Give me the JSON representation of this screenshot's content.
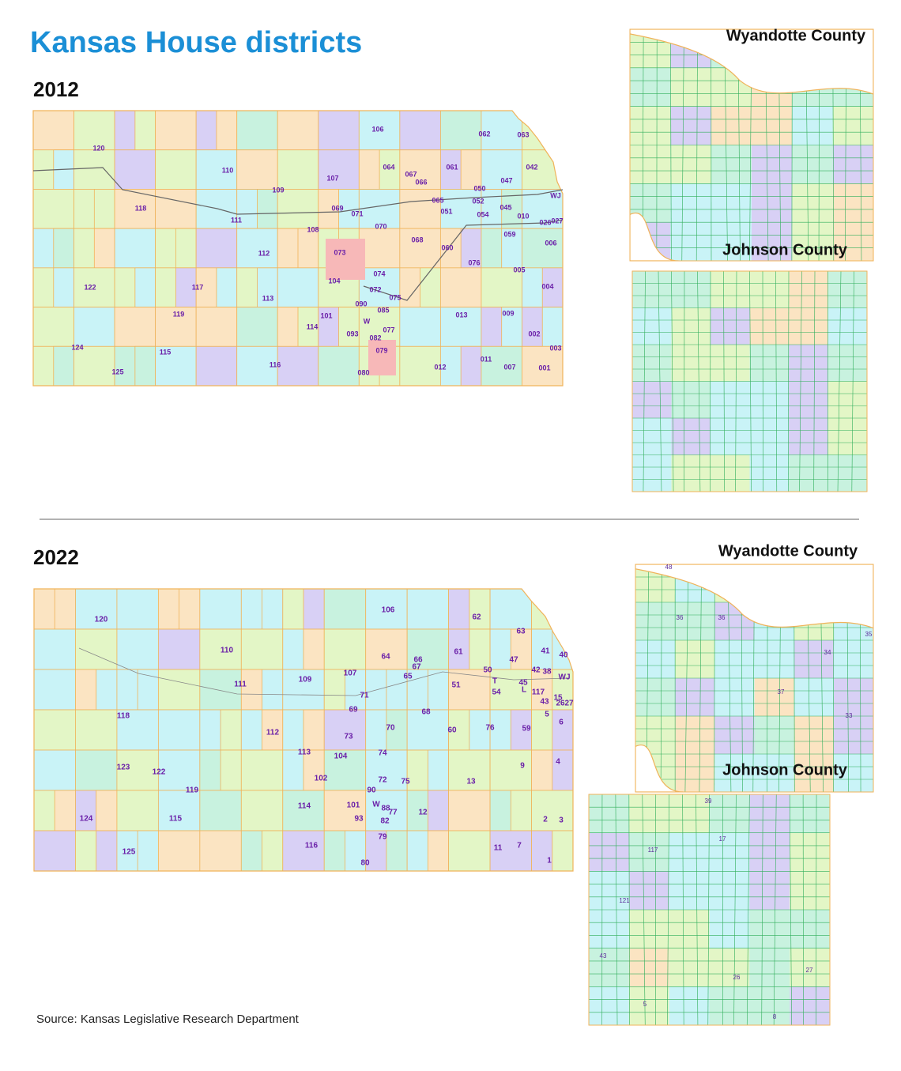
{
  "title": "Kansas House districts",
  "sections": [
    {
      "year": "2012",
      "labels": [
        "120",
        "110",
        "109",
        "118",
        "111",
        "106",
        "062",
        "063",
        "064",
        "067",
        "066",
        "061",
        "042",
        "047",
        "107",
        "050",
        "052",
        "065",
        "045",
        "051",
        "054",
        "010",
        "069",
        "071",
        "027",
        "026",
        "108",
        "070",
        "059",
        "112",
        "068",
        "006",
        "060",
        "073",
        "076",
        "005",
        "104",
        "074",
        "122",
        "117",
        "072",
        "004",
        "113",
        "075",
        "090",
        "119",
        "085",
        "013",
        "009",
        "101",
        "114",
        "077",
        "093",
        "002",
        "082",
        "124",
        "115",
        "079",
        "003",
        "116",
        "012",
        "011",
        "007",
        "001",
        "125",
        "080",
        "W",
        "WJ"
      ],
      "insets": [
        {
          "title": "Wyandotte County",
          "labels": []
        },
        {
          "title": "Johnson County",
          "labels": []
        }
      ]
    },
    {
      "year": "2022",
      "labels": [
        "120",
        "106",
        "62",
        "63",
        "110",
        "64",
        "66",
        "67",
        "61",
        "47",
        "41",
        "40",
        "107",
        "109",
        "65",
        "50",
        "42",
        "38",
        "111",
        "71",
        "51",
        "T",
        "45",
        "L",
        "117",
        "WJ",
        "54",
        "15",
        "26",
        "27",
        "43",
        "69",
        "118",
        "68",
        "5",
        "112",
        "70",
        "60",
        "76",
        "59",
        "6",
        "73",
        "113",
        "74",
        "104",
        "4",
        "123",
        "122",
        "102",
        "72",
        "75",
        "13",
        "9",
        "119",
        "90",
        "W",
        "88",
        "101",
        "114",
        "12",
        "77",
        "82",
        "115",
        "124",
        "93",
        "2",
        "3",
        "79",
        "116",
        "11",
        "7",
        "125",
        "80",
        "1"
      ],
      "insets": [
        {
          "title": "Wyandotte County",
          "labels": [
            "48",
            "36",
            "36",
            "35",
            "34",
            "37",
            "33"
          ]
        },
        {
          "title": "Johnson County",
          "labels": [
            "39",
            "117",
            "17",
            "121",
            "43",
            "27",
            "26",
            "5",
            "8"
          ]
        }
      ]
    }
  ],
  "source": "Source: Kansas Legislative Research Department"
}
